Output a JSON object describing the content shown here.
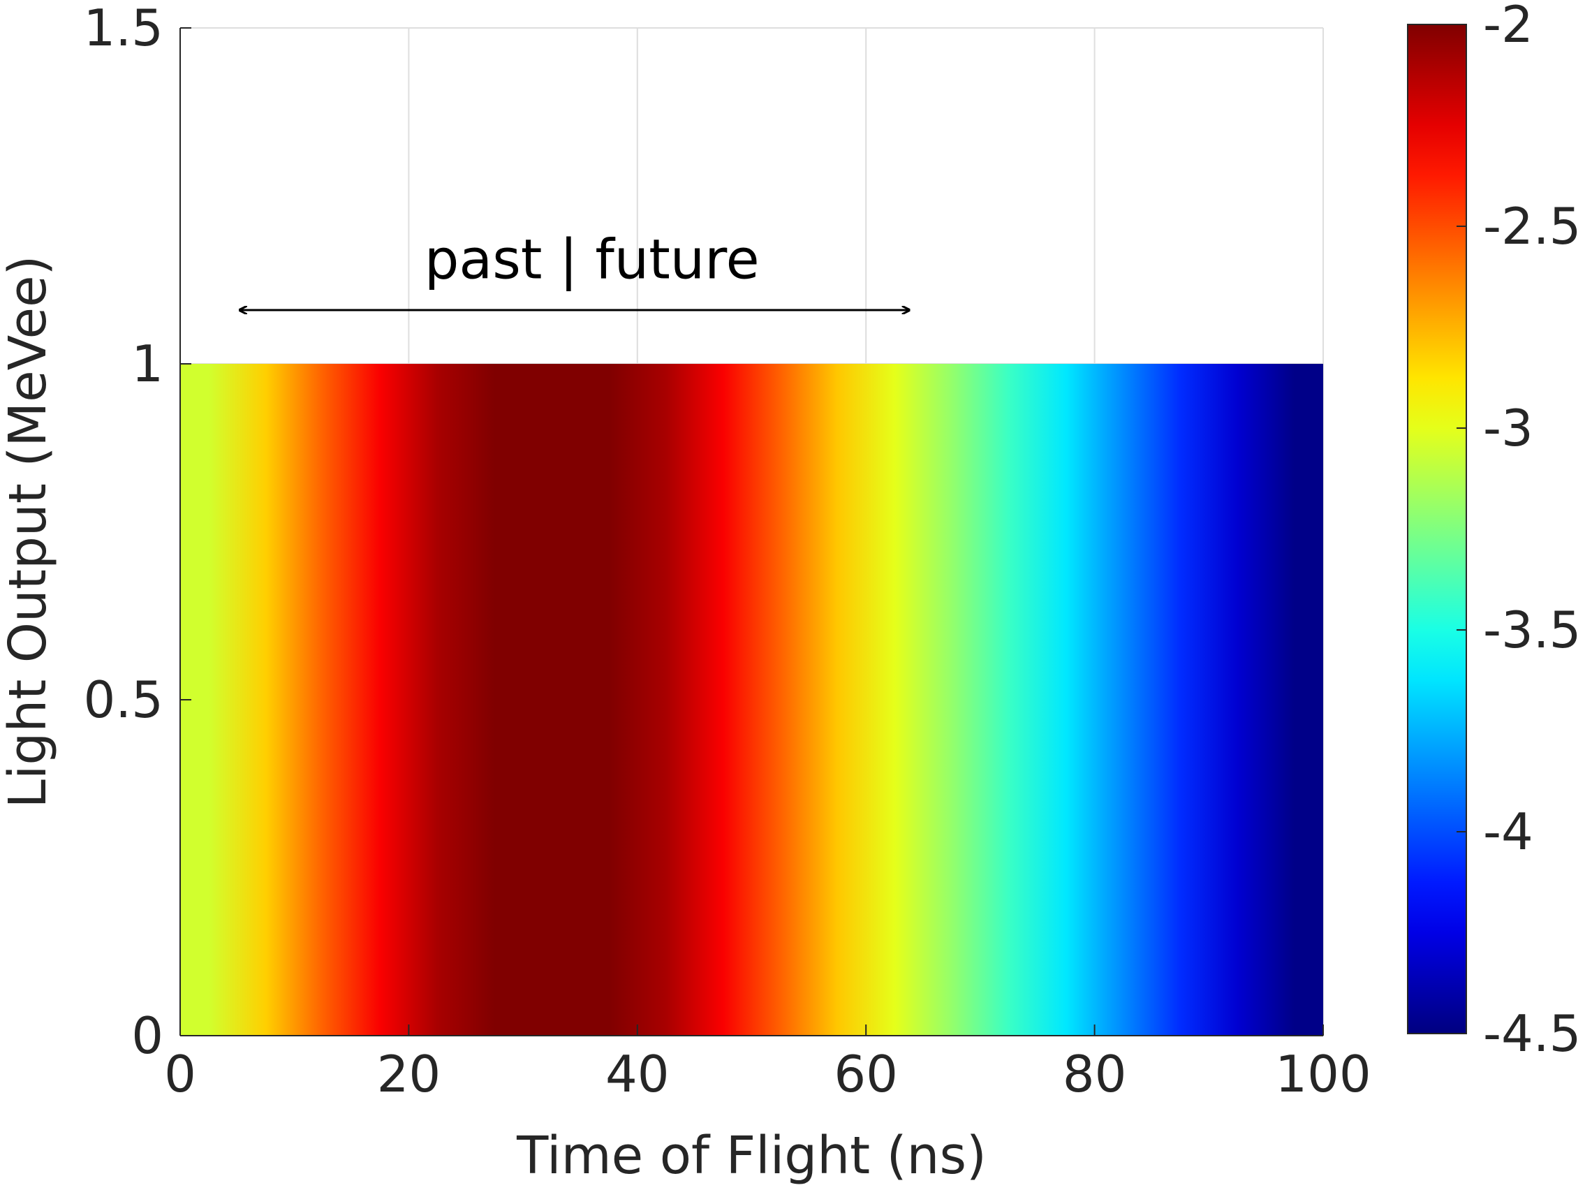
{
  "chart_data": {
    "type": "heatmap",
    "title": "",
    "xlabel": "Time of Flight (ns)",
    "ylabel": "Light Output (MeVee)",
    "xlim": [
      0,
      100
    ],
    "ylim": [
      0,
      1.5
    ],
    "x_ticks": [
      0,
      20,
      40,
      60,
      80,
      100
    ],
    "x_tick_labels": [
      "0",
      "20",
      "40",
      "60",
      "80",
      "100"
    ],
    "y_ticks": [
      0,
      0.5,
      1,
      1.5
    ],
    "y_tick_labels": [
      "0",
      "0.5",
      "1",
      "1.5"
    ],
    "grid": true,
    "colormap": "jet",
    "colorbar": {
      "range": [
        -4.5,
        -2
      ],
      "ticks": [
        -2,
        -2.5,
        -3,
        -3.5,
        -4,
        -4.5
      ],
      "tick_labels": [
        "-2",
        "-2.5",
        "-3",
        "-3.5",
        "-4",
        "-4.5"
      ],
      "placement": "right"
    },
    "heatmap": {
      "x_range": [
        0,
        100
      ],
      "y_range": [
        0,
        1
      ],
      "columns": [
        {
          "x0": 0,
          "x1": 5,
          "value": -3.05
        },
        {
          "x0": 5,
          "x1": 10,
          "value": -2.82
        },
        {
          "x0": 10,
          "x1": 15,
          "value": -2.55
        },
        {
          "x0": 15,
          "x1": 20,
          "value": -2.3
        },
        {
          "x0": 20,
          "x1": 25,
          "value": -2.1
        },
        {
          "x0": 25,
          "x1": 30,
          "value": -2.0
        },
        {
          "x0": 30,
          "x1": 35,
          "value": -2.0
        },
        {
          "x0": 35,
          "x1": 40,
          "value": -2.0
        },
        {
          "x0": 40,
          "x1": 45,
          "value": -2.1
        },
        {
          "x0": 45,
          "x1": 50,
          "value": -2.3
        },
        {
          "x0": 50,
          "x1": 55,
          "value": -2.55
        },
        {
          "x0": 55,
          "x1": 60,
          "value": -2.8
        },
        {
          "x0": 60,
          "x1": 65,
          "value": -3.0
        },
        {
          "x0": 65,
          "x1": 70,
          "value": -3.2
        },
        {
          "x0": 70,
          "x1": 75,
          "value": -3.42
        },
        {
          "x0": 75,
          "x1": 80,
          "value": -3.62
        },
        {
          "x0": 80,
          "x1": 85,
          "value": -3.85
        },
        {
          "x0": 85,
          "x1": 90,
          "value": -4.08
        },
        {
          "x0": 90,
          "x1": 95,
          "value": -4.3
        },
        {
          "x0": 95,
          "x1": 100,
          "value": -4.48
        }
      ]
    },
    "annotation": {
      "text": "past  |  future",
      "arrow_x": [
        5,
        64
      ],
      "arrow_y": 1.08,
      "text_y": 1.15
    }
  }
}
